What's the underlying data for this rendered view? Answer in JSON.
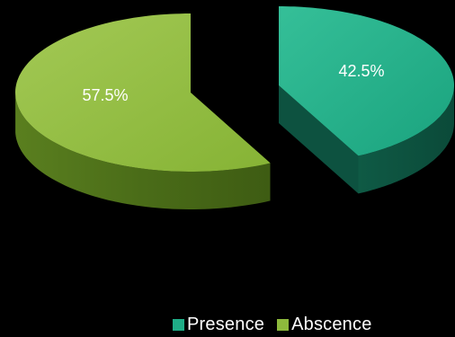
{
  "chart_data": {
    "type": "pie",
    "style": "3d-exploded",
    "categories": [
      "Presence",
      "Abscence"
    ],
    "values": [
      42.5,
      57.5
    ],
    "labels": [
      "42.5%",
      "57.5%"
    ],
    "colors": [
      "#1fad87",
      "#8dba3c"
    ],
    "legend_position": "bottom",
    "title": ""
  },
  "legend": {
    "items": [
      {
        "label": "Presence",
        "color": "#1fad87"
      },
      {
        "label": "Abscence",
        "color": "#8dba3c"
      }
    ]
  }
}
